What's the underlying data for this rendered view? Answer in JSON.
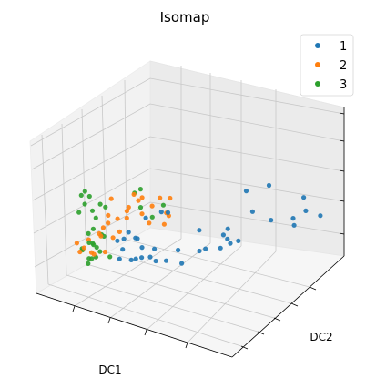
{
  "chart_data": {
    "type": "scatter",
    "dimensions": 3,
    "title": "Isomap",
    "xlabel": "DC1",
    "ylabel": "DC2",
    "zlabel": "",
    "tick_labels_shown": false,
    "grid": true,
    "legend_position": "top-right",
    "colors": {
      "1": "#1f77b4",
      "2": "#ff7f0e",
      "3": "#2ca02c"
    },
    "series": [
      {
        "name": "1",
        "color": "#1f77b4",
        "points": [
          [
            5.3,
            9.1,
            6.5
          ],
          [
            7.4,
            9.6,
            4.9
          ],
          [
            6.8,
            7.0,
            5.1
          ],
          [
            6.6,
            7.4,
            3.9
          ],
          [
            7.0,
            8.1,
            3.3
          ],
          [
            8.2,
            9.2,
            3.6
          ],
          [
            8.6,
            9.7,
            3.2
          ],
          [
            8.9,
            8.1,
            2.6
          ],
          [
            8.8,
            8.2,
            2.2
          ],
          [
            5.9,
            6.5,
            2.9
          ],
          [
            6.0,
            6.2,
            2.4
          ],
          [
            6.1,
            6.9,
            2.1
          ],
          [
            5.6,
            5.2,
            2.7
          ],
          [
            6.5,
            6.1,
            1.9
          ],
          [
            6.4,
            6.3,
            1.7
          ],
          [
            6.2,
            5.9,
            1.4
          ],
          [
            6.4,
            5.0,
            1.1
          ],
          [
            6.2,
            4.8,
            1.0
          ],
          [
            5.2,
            4.3,
            1.4
          ],
          [
            4.2,
            3.0,
            1.1
          ],
          [
            4.6,
            3.2,
            1.0
          ],
          [
            4.4,
            3.6,
            0.9
          ],
          [
            4.8,
            3.9,
            0.8
          ],
          [
            4.4,
            2.7,
            2.2
          ],
          [
            3.2,
            3.3,
            1.5
          ],
          [
            3.4,
            2.6,
            2.6
          ],
          [
            3.9,
            2.9,
            2.5
          ],
          [
            3.6,
            3.4,
            2.1
          ],
          [
            5.3,
            4.4,
            0.5
          ],
          [
            2.8,
            3.3,
            1.6
          ],
          [
            1.8,
            3.3,
            2.1
          ],
          [
            2.1,
            3.3,
            2.6
          ],
          [
            3.2,
            3.9,
            4.3
          ],
          [
            4.4,
            4.0,
            4.2
          ],
          [
            4.8,
            4.1,
            4.0
          ],
          [
            4.0,
            3.8,
            1.9
          ],
          [
            2.5,
            2.8,
            2.9
          ],
          [
            3.0,
            3.1,
            3.3
          ]
        ]
      },
      {
        "name": "2",
        "color": "#ff7f0e",
        "points": [
          [
            1.8,
            3.0,
            6.0
          ],
          [
            2.3,
            4.3,
            6.1
          ],
          [
            3.1,
            3.4,
            5.8
          ],
          [
            2.8,
            3.8,
            5.6
          ],
          [
            3.5,
            4.5,
            5.6
          ],
          [
            3.3,
            4.2,
            5.1
          ],
          [
            4.2,
            4.6,
            5.3
          ],
          [
            3.1,
            3.1,
            4.9
          ],
          [
            2.6,
            3.3,
            4.9
          ],
          [
            2.9,
            3.9,
            4.7
          ],
          [
            4.0,
            4.5,
            4.4
          ],
          [
            3.7,
            4.8,
            4.4
          ],
          [
            2.3,
            2.5,
            4.6
          ],
          [
            2.6,
            2.8,
            4.3
          ],
          [
            2.1,
            2.6,
            4.2
          ],
          [
            3.4,
            2.8,
            4.0
          ],
          [
            2.0,
            2.4,
            3.9
          ],
          [
            2.9,
            2.7,
            3.3
          ],
          [
            2.3,
            2.0,
            3.3
          ],
          [
            2.8,
            2.4,
            2.9
          ],
          [
            1.6,
            1.6,
            2.6
          ],
          [
            1.4,
            1.5,
            2.4
          ],
          [
            1.9,
            1.8,
            2.2
          ],
          [
            2.4,
            2.2,
            2.1
          ],
          [
            1.5,
            1.3,
            2.9
          ],
          [
            2.1,
            1.8,
            2.0
          ],
          [
            4.3,
            3.4,
            3.4
          ],
          [
            4.6,
            4.0,
            3.3
          ],
          [
            1.2,
            2.1,
            3.4
          ],
          [
            2.6,
            1.9,
            3.0
          ]
        ]
      },
      {
        "name": "3",
        "color": "#2ca02c",
        "points": [
          [
            2.2,
            4.3,
            6.7
          ],
          [
            2.0,
            4.1,
            6.5
          ],
          [
            0.4,
            2.5,
            7.0
          ],
          [
            0.4,
            2.3,
            6.7
          ],
          [
            0.6,
            2.6,
            6.6
          ],
          [
            0.5,
            2.4,
            6.1
          ],
          [
            0.3,
            2.2,
            5.6
          ],
          [
            1.5,
            2.6,
            5.7
          ],
          [
            1.3,
            2.3,
            5.3
          ],
          [
            1.6,
            2.8,
            5.5
          ],
          [
            1.4,
            2.4,
            4.8
          ],
          [
            1.3,
            2.3,
            4.1
          ],
          [
            1.2,
            2.1,
            3.8
          ],
          [
            1.5,
            2.6,
            3.7
          ],
          [
            3.3,
            3.6,
            4.9
          ],
          [
            3.6,
            4.0,
            4.2
          ],
          [
            3.6,
            4.6,
            5.1
          ],
          [
            1.4,
            2.0,
            3.1
          ],
          [
            1.6,
            2.1,
            2.9
          ],
          [
            1.7,
            2.2,
            2.7
          ],
          [
            1.1,
            1.8,
            2.8
          ],
          [
            1.3,
            1.7,
            2.6
          ],
          [
            1.8,
            2.3,
            2.4
          ],
          [
            1.6,
            2.2,
            2.1
          ],
          [
            1.5,
            1.9,
            2.0
          ],
          [
            1.9,
            1.8,
            1.8
          ],
          [
            1.4,
            1.9,
            1.7
          ],
          [
            2.8,
            2.2,
            1.6
          ],
          [
            1.7,
            2.6,
            3.5
          ],
          [
            1.2,
            2.3,
            3.2
          ]
        ]
      }
    ]
  }
}
